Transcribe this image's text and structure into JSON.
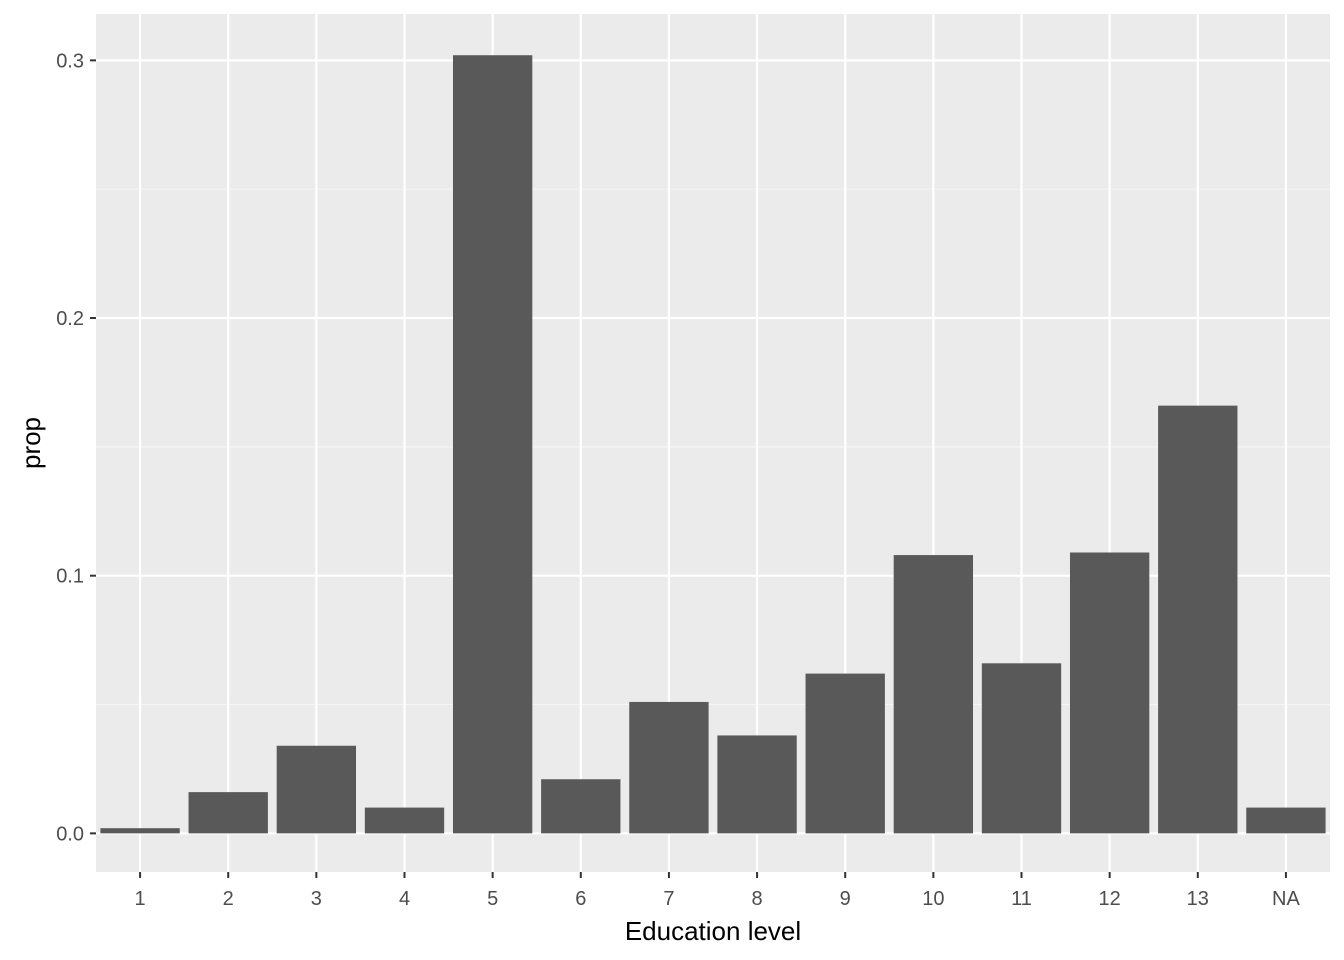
{
  "chart_data": {
    "type": "bar",
    "title": "",
    "xlabel": "Education level",
    "ylabel": "prop",
    "categories": [
      "1",
      "2",
      "3",
      "4",
      "5",
      "6",
      "7",
      "8",
      "9",
      "10",
      "11",
      "12",
      "13",
      "NA"
    ],
    "values": [
      0.002,
      0.016,
      0.034,
      0.01,
      0.302,
      0.021,
      0.051,
      0.038,
      0.062,
      0.108,
      0.066,
      0.109,
      0.166,
      0.01
    ],
    "ylim": [
      -0.015,
      0.318
    ],
    "yticks": [
      0.0,
      0.1,
      0.2,
      0.3
    ],
    "ytick_labels": [
      "0.0",
      "0.1",
      "0.2",
      "0.3"
    ],
    "grid": true,
    "legend": "none",
    "colors": {
      "panel_background": "#ebebeb",
      "grid_major": "#ffffff",
      "grid_minor": "#f5f5f5",
      "bar_fill": "#595959",
      "tick_mark": "#333333",
      "tick_label": "#4d4d4d",
      "axis_title": "#000000"
    }
  }
}
